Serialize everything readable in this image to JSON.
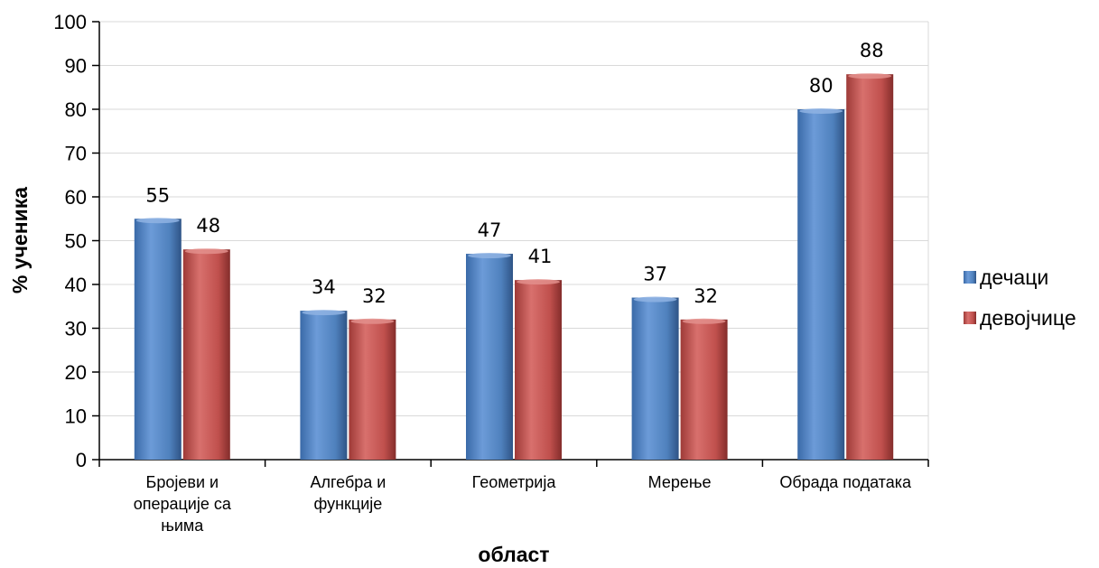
{
  "chart_data": {
    "type": "bar",
    "categories": [
      [
        "Бројеви и",
        "операције са",
        "њима"
      ],
      [
        "Алгебра и",
        "функције"
      ],
      [
        "Геометрија"
      ],
      [
        "Мерење"
      ],
      [
        "Обрада података"
      ]
    ],
    "series": [
      {
        "name": "дечаци",
        "values": [
          55,
          34,
          47,
          37,
          80
        ],
        "color": "#4f81bd"
      },
      {
        "name": "девојчице",
        "values": [
          48,
          32,
          41,
          32,
          88
        ],
        "color": "#c0504d"
      }
    ],
    "xlabel": "област",
    "ylabel": "% ученика",
    "ylim": [
      0,
      100
    ],
    "yticks": [
      0,
      10,
      20,
      30,
      40,
      50,
      60,
      70,
      80,
      90,
      100
    ],
    "grid": true,
    "legend": "right"
  }
}
